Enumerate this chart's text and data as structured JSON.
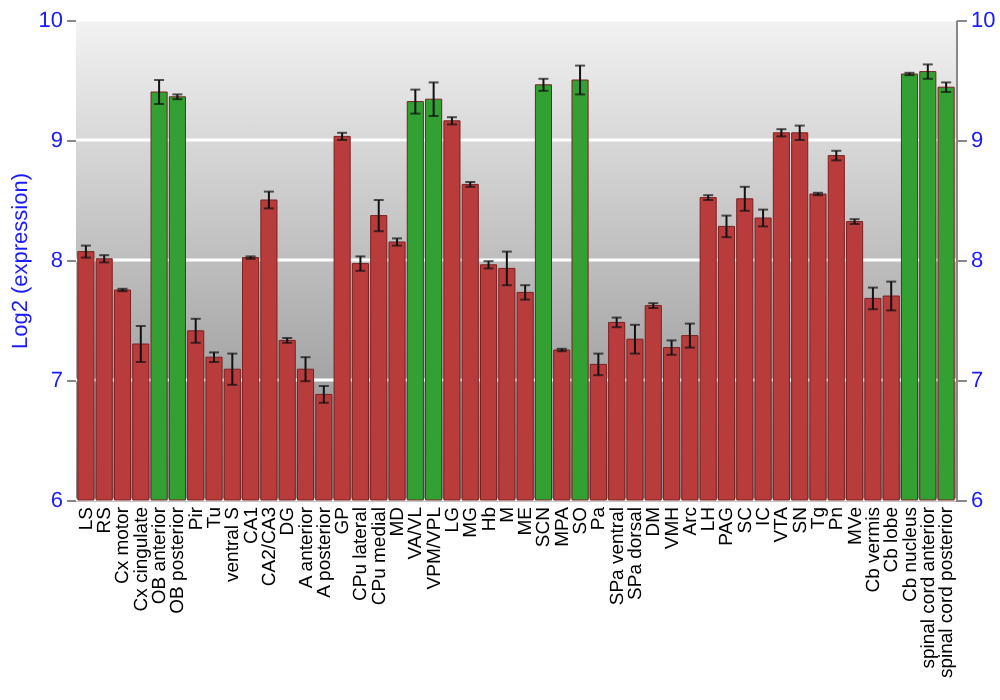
{
  "chart_data": {
    "type": "bar",
    "ylabel": "Log2 (expression)",
    "categories": [
      "LS",
      "RS",
      "Cx motor",
      "Cx cingulate",
      "OB anterior",
      "OB posterior",
      "Pir",
      "Tu",
      "ventral S",
      "CA1",
      "CA2/CA3",
      "DG",
      "A anterior",
      "A posterior",
      "GP",
      "CPu lateral",
      "CPu medial",
      "MD",
      "VA/VL",
      "VPM/VPL",
      "LG",
      "MG",
      "Hb",
      "M",
      "ME",
      "SCN",
      "MPA",
      "SO",
      "Pa",
      "SPa ventral",
      "SPa dorsal",
      "DM",
      "VMH",
      "Arc",
      "LH",
      "PAG",
      "SC",
      "IC",
      "VTA",
      "SN",
      "Tg",
      "Pn",
      "MVe",
      "Cb vermis",
      "Cb lobe",
      "Cb nucleus",
      "spinal cord anterior",
      "spinal cord posterior"
    ],
    "values": [
      8.07,
      8.01,
      7.75,
      7.3,
      9.4,
      9.36,
      7.41,
      7.19,
      7.09,
      8.02,
      8.5,
      7.33,
      7.09,
      6.88,
      9.03,
      7.97,
      8.37,
      8.15,
      9.32,
      9.34,
      9.16,
      8.63,
      7.96,
      7.93,
      7.73,
      9.46,
      7.25,
      9.5,
      7.13,
      7.48,
      7.34,
      7.62,
      7.27,
      7.37,
      8.52,
      8.28,
      8.51,
      8.35,
      9.06,
      9.06,
      8.55,
      8.87,
      8.32,
      7.68,
      7.7,
      9.55,
      9.57,
      9.44
    ],
    "errors": [
      0.05,
      0.03,
      0.01,
      0.15,
      0.1,
      0.02,
      0.1,
      0.04,
      0.13,
      0.01,
      0.07,
      0.02,
      0.1,
      0.07,
      0.03,
      0.06,
      0.13,
      0.03,
      0.1,
      0.14,
      0.03,
      0.02,
      0.03,
      0.14,
      0.06,
      0.05,
      0.01,
      0.12,
      0.09,
      0.04,
      0.12,
      0.02,
      0.06,
      0.1,
      0.02,
      0.09,
      0.1,
      0.07,
      0.03,
      0.06,
      0.01,
      0.04,
      0.02,
      0.09,
      0.12,
      0.01,
      0.06,
      0.04
    ],
    "colors": [
      "#b83c3c",
      "#b83c3c",
      "#b83c3c",
      "#b83c3c",
      "#33a033",
      "#33a033",
      "#b83c3c",
      "#b83c3c",
      "#b83c3c",
      "#b83c3c",
      "#b83c3c",
      "#b83c3c",
      "#b83c3c",
      "#b83c3c",
      "#b83c3c",
      "#b83c3c",
      "#b83c3c",
      "#b83c3c",
      "#33a033",
      "#33a033",
      "#b83c3c",
      "#b83c3c",
      "#b83c3c",
      "#b83c3c",
      "#b83c3c",
      "#33a033",
      "#b83c3c",
      "#33a033",
      "#b83c3c",
      "#b83c3c",
      "#b83c3c",
      "#b83c3c",
      "#b83c3c",
      "#b83c3c",
      "#b83c3c",
      "#b83c3c",
      "#b83c3c",
      "#b83c3c",
      "#b83c3c",
      "#b83c3c",
      "#b83c3c",
      "#b83c3c",
      "#b83c3c",
      "#b83c3c",
      "#b83c3c",
      "#33a033",
      "#33a033",
      "#33a033"
    ],
    "ylim": [
      6,
      10
    ],
    "yticks": [
      6,
      7,
      8,
      9,
      10
    ],
    "y2lim": [
      6,
      10
    ],
    "y2ticks": [
      6,
      7,
      8,
      9,
      10
    ],
    "grid": "y"
  }
}
